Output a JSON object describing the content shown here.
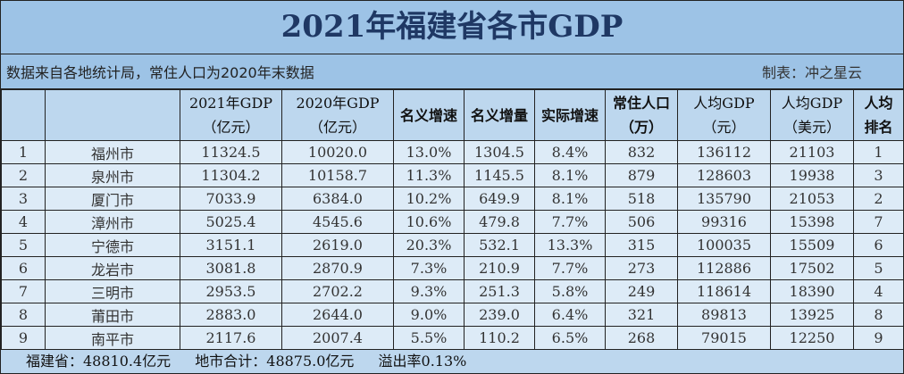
{
  "title": "2021年福建省各市GDP",
  "note": "数据来自各地统计局，常住人口为2020年末数据",
  "author": "制表：冲之星云",
  "headers": [
    {
      "l1": "",
      "l2": ""
    },
    {
      "l1": "",
      "l2": ""
    },
    {
      "l1": "2021年GDP",
      "l2": "（亿元）"
    },
    {
      "l1": "2020年GDP",
      "l2": "（亿元）"
    },
    {
      "l1": "名义增速",
      "l2": ""
    },
    {
      "l1": "名义增量",
      "l2": ""
    },
    {
      "l1": "实际增速",
      "l2": ""
    },
    {
      "l1": "常住人口",
      "l2": "（万）"
    },
    {
      "l1": "人均GDP",
      "l2": "（元）"
    },
    {
      "l1": "人均GDP",
      "l2": "（美元）"
    },
    {
      "l1": "人均",
      "l2": "排名"
    }
  ],
  "rows": [
    [
      "1",
      "福州市",
      "11324.5",
      "10020.0",
      "13.0%",
      "1304.5",
      "8.4%",
      "832",
      "136112",
      "21103",
      "1"
    ],
    [
      "2",
      "泉州市",
      "11304.2",
      "10158.7",
      "11.3%",
      "1145.5",
      "8.1%",
      "879",
      "128603",
      "19938",
      "3"
    ],
    [
      "3",
      "厦门市",
      "7033.9",
      "6384.0",
      "10.2%",
      "649.9",
      "8.1%",
      "518",
      "135790",
      "21053",
      "2"
    ],
    [
      "4",
      "漳州市",
      "5025.4",
      "4545.6",
      "10.6%",
      "479.8",
      "7.7%",
      "506",
      "99316",
      "15398",
      "7"
    ],
    [
      "5",
      "宁德市",
      "3151.1",
      "2619.0",
      "20.3%",
      "532.1",
      "13.3%",
      "315",
      "100035",
      "15509",
      "6"
    ],
    [
      "6",
      "龙岩市",
      "3081.8",
      "2870.9",
      "7.3%",
      "210.9",
      "7.7%",
      "273",
      "112886",
      "17502",
      "5"
    ],
    [
      "7",
      "三明市",
      "2953.5",
      "2702.2",
      "9.3%",
      "251.3",
      "5.8%",
      "249",
      "118614",
      "18390",
      "4"
    ],
    [
      "8",
      "莆田市",
      "2883.0",
      "2644.0",
      "9.0%",
      "239.0",
      "6.4%",
      "321",
      "89813",
      "13925",
      "8"
    ],
    [
      "9",
      "南平市",
      "2117.6",
      "2007.4",
      "5.5%",
      "110.2",
      "6.5%",
      "268",
      "79015",
      "12250",
      "9"
    ]
  ],
  "footer": {
    "province": "福建省：48810.4亿元",
    "sum": "地市合计：48875.0亿元",
    "overflow": "溢出率0.13%"
  }
}
